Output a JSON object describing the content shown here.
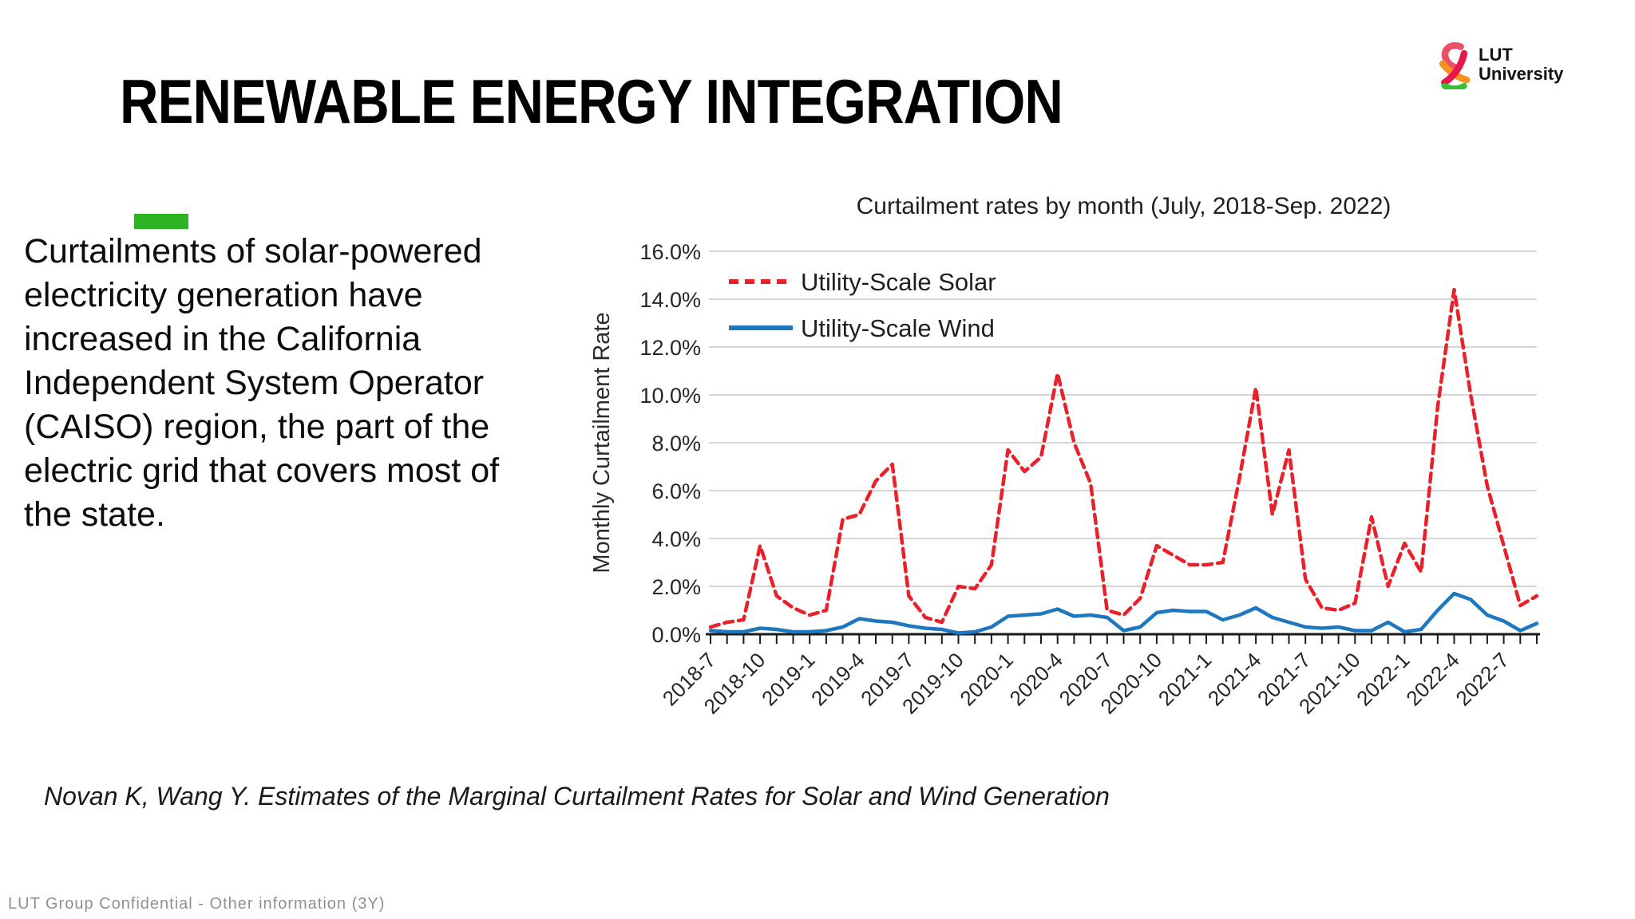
{
  "slide": {
    "title": "RENEWABLE ENERGY INTEGRATION",
    "highlight_color": "#2eb422",
    "body_text": "Curtailments of solar-powered\nelectricity generation have\nincreased in the California\nIndependent System Operator\n(CAISO) region, the part of the\nelectric grid that covers most of\nthe state.",
    "citation": "Novan K, Wang Y. Estimates of the Marginal Curtailment Rates for Solar and Wind Generation",
    "footer": "LUT Group Confidential - Other information (3Y)"
  },
  "logo": {
    "line1": "LUT",
    "line2": "University",
    "ampersand_colors": {
      "rose": "#ea5167",
      "red": "#e8174b",
      "orange": "#f6921e",
      "green": "#35c135"
    }
  },
  "chart_data": {
    "type": "line",
    "title": "Curtailment rates by month (July, 2018-Sep. 2022)",
    "xlabel": "",
    "ylabel": "Monthly Curtailment Rate",
    "ylim": [
      0,
      16
    ],
    "ytick_step": 2,
    "ytick_suffix": "%",
    "grid": true,
    "legend_position": "top-left-inside",
    "x_label_every": 3,
    "x": [
      "2018-7",
      "2018-8",
      "2018-9",
      "2018-10",
      "2018-11",
      "2018-12",
      "2019-1",
      "2019-2",
      "2019-3",
      "2019-4",
      "2019-5",
      "2019-6",
      "2019-7",
      "2019-8",
      "2019-9",
      "2019-10",
      "2019-11",
      "2019-12",
      "2020-1",
      "2020-2",
      "2020-3",
      "2020-4",
      "2020-5",
      "2020-6",
      "2020-7",
      "2020-8",
      "2020-9",
      "2020-10",
      "2020-11",
      "2020-12",
      "2021-1",
      "2021-2",
      "2021-3",
      "2021-4",
      "2021-5",
      "2021-6",
      "2021-7",
      "2021-8",
      "2021-9",
      "2021-10",
      "2021-11",
      "2021-12",
      "2022-1",
      "2022-2",
      "2022-3",
      "2022-4",
      "2022-5",
      "2022-6",
      "2022-7",
      "2022-8",
      "2022-9"
    ],
    "x_shown_labels": [
      "2018-7",
      "2018-10",
      "2019-1",
      "2019-4",
      "2019-7",
      "2019-10",
      "2020-1",
      "2020-4",
      "2020-7",
      "2020-10",
      "2021-1",
      "2021-4",
      "2021-7",
      "2021-10",
      "2022-1",
      "2022-4",
      "2022-7"
    ],
    "series": [
      {
        "name": "Utility-Scale Solar",
        "color": "#e8212b",
        "style": "dashed",
        "values": [
          0.3,
          0.5,
          0.6,
          3.7,
          1.6,
          1.1,
          0.8,
          1.0,
          4.8,
          5.0,
          6.4,
          7.1,
          1.6,
          0.7,
          0.5,
          2.0,
          1.9,
          2.9,
          7.7,
          6.8,
          7.4,
          10.9,
          8.0,
          6.3,
          1.0,
          0.8,
          1.5,
          3.7,
          3.3,
          2.9,
          2.9,
          3.0,
          6.5,
          10.3,
          5.0,
          7.7,
          2.3,
          1.1,
          1.0,
          1.3,
          4.9,
          2.0,
          3.8,
          2.6,
          9.5,
          14.4,
          10.0,
          6.2,
          3.7,
          1.2,
          1.6
        ]
      },
      {
        "name": "Utility-Scale Wind",
        "color": "#1e78bf",
        "style": "solid",
        "values": [
          0.15,
          0.1,
          0.1,
          0.25,
          0.2,
          0.1,
          0.1,
          0.15,
          0.3,
          0.65,
          0.55,
          0.5,
          0.35,
          0.25,
          0.2,
          0.05,
          0.1,
          0.3,
          0.75,
          0.8,
          0.85,
          1.05,
          0.75,
          0.8,
          0.7,
          0.15,
          0.3,
          0.9,
          1.0,
          0.95,
          0.95,
          0.6,
          0.8,
          1.1,
          0.7,
          0.5,
          0.3,
          0.25,
          0.3,
          0.15,
          0.15,
          0.5,
          0.1,
          0.2,
          1.0,
          1.7,
          1.45,
          0.8,
          0.55,
          0.15,
          0.45
        ]
      }
    ]
  }
}
